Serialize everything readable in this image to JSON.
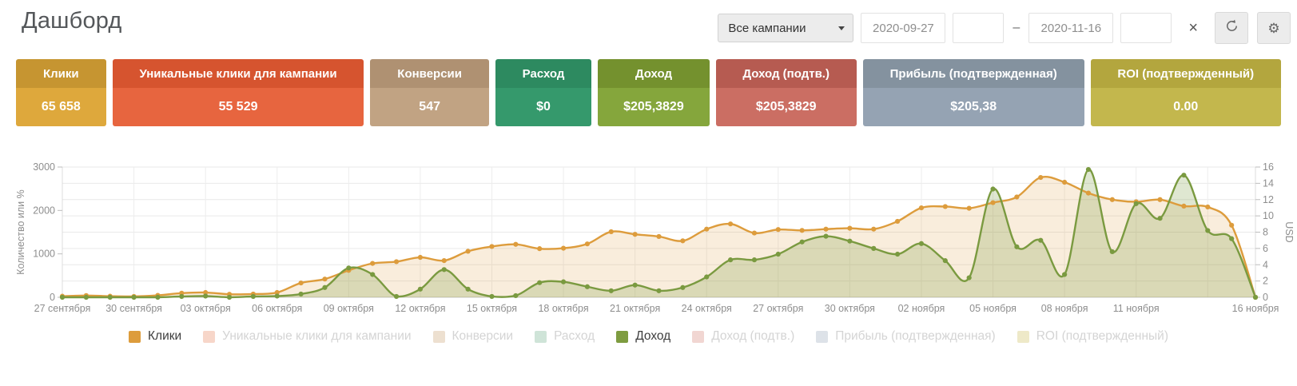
{
  "header": {
    "title": "Дашборд",
    "campaign_select": {
      "value": "Все кампании"
    },
    "date_from": "2020-09-27",
    "date_from_time": "",
    "date_to": "2020-11-16",
    "date_to_time": "",
    "range_separator": "–",
    "clear_label": "×"
  },
  "cards": [
    {
      "label": "Клики",
      "value": "65 658",
      "header_color": "#c69531",
      "body_color": "#dea83c"
    },
    {
      "label": "Уникальные клики для кампании",
      "value": "55 529",
      "header_color": "#d6542f",
      "body_color": "#e7653f"
    },
    {
      "label": "Конверсии",
      "value": "547",
      "header_color": "#af9172",
      "body_color": "#c1a383"
    },
    {
      "label": "Расход",
      "value": "$0",
      "header_color": "#2d8a60",
      "body_color": "#35996c"
    },
    {
      "label": "Доход",
      "value": "$205,3829",
      "header_color": "#74912e",
      "body_color": "#85a63c"
    },
    {
      "label": "Доход (подтв.)",
      "value": "$205,3829",
      "header_color": "#b65b51",
      "body_color": "#cb6e63"
    },
    {
      "label": "Прибыль (подтвержденная)",
      "value": "$205,38",
      "header_color": "#84929f",
      "body_color": "#95a3b3"
    },
    {
      "label": "ROI (подтвержденный)",
      "value": "0.00",
      "header_color": "#b3a63e",
      "body_color": "#c3b74d"
    }
  ],
  "chart_data": {
    "type": "line",
    "start_date": "2020-09-27",
    "end_date": "2020-11-16",
    "days": 51,
    "x_ticks": [
      "27 сентября",
      "30 сентября",
      "03 октября",
      "06 октября",
      "09 октября",
      "12 октября",
      "15 октября",
      "18 октября",
      "21 октября",
      "24 октября",
      "27 октября",
      "30 октября",
      "02 ноября",
      "05 ноября",
      "08 ноября",
      "11 ноября",
      "16 ноября"
    ],
    "x_tick_days": [
      0,
      3,
      6,
      9,
      12,
      15,
      18,
      21,
      24,
      27,
      30,
      33,
      36,
      39,
      42,
      45,
      50
    ],
    "grid_days": [
      3,
      6,
      9,
      12,
      15,
      18,
      21,
      24,
      27,
      30,
      33,
      36,
      39,
      42,
      45,
      48
    ],
    "y_left": {
      "label": "Количество или %",
      "ticks": [
        0,
        1000,
        2000,
        3000
      ],
      "max": 3000
    },
    "y_right": {
      "label": "USD",
      "ticks": [
        0,
        2,
        4,
        6,
        8,
        10,
        12,
        14,
        16
      ],
      "max": 16
    },
    "series": [
      {
        "name": "Клики",
        "axis": "left",
        "color": "#dd9c3c",
        "fill": "rgba(221,156,60,0.18)",
        "values": [
          25,
          40,
          25,
          20,
          45,
          95,
          110,
          70,
          75,
          110,
          330,
          420,
          620,
          780,
          820,
          920,
          845,
          1060,
          1170,
          1220,
          1120,
          1130,
          1230,
          1510,
          1450,
          1400,
          1300,
          1570,
          1690,
          1480,
          1560,
          1540,
          1570,
          1590,
          1570,
          1750,
          2060,
          2090,
          2050,
          2180,
          2310,
          2760,
          2650,
          2400,
          2250,
          2200,
          2250,
          2100,
          2080,
          1660,
          0
        ]
      },
      {
        "name": "Доход",
        "axis": "right",
        "color": "#7a9a40",
        "fill": "rgba(122,154,64,0.24)",
        "values": [
          0,
          0,
          0,
          0,
          0,
          0.1,
          0.15,
          0,
          0.1,
          0.15,
          0.4,
          1.2,
          3.6,
          2.8,
          0.1,
          1.0,
          3.4,
          1.0,
          0.1,
          0.2,
          1.8,
          1.9,
          1.3,
          0.8,
          1.5,
          0.8,
          1.2,
          2.5,
          4.6,
          4.6,
          5.3,
          6.8,
          7.5,
          6.9,
          6.0,
          5.3,
          6.6,
          4.5,
          2.4,
          13.3,
          6.2,
          7.0,
          2.8,
          15.7,
          5.6,
          11.5,
          9.7,
          15.0,
          8.2,
          7.2,
          0
        ]
      }
    ],
    "legend_position": "bottom",
    "grid": true
  },
  "legend": [
    {
      "label": "Клики",
      "color": "#dd9c3c",
      "active": true
    },
    {
      "label": "Уникальные клики для кампании",
      "color": "#f7d6c9",
      "active": false
    },
    {
      "label": "Конверсии",
      "color": "#ede0d0",
      "active": false
    },
    {
      "label": "Расход",
      "color": "#cfe4d8",
      "active": false
    },
    {
      "label": "Доход",
      "color": "#7e9c40",
      "active": true
    },
    {
      "label": "Доход (подтв.)",
      "color": "#f1d6d2",
      "active": false
    },
    {
      "label": "Прибыль (подтвержденная)",
      "color": "#dde2e8",
      "active": false
    },
    {
      "label": "ROI (подтвержденный)",
      "color": "#eee9c8",
      "active": false
    }
  ]
}
